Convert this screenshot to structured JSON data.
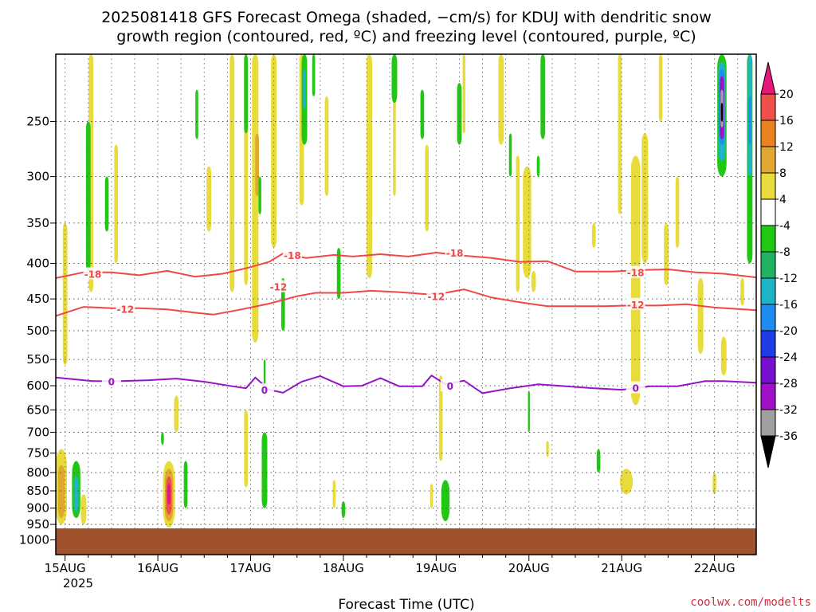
{
  "chart_data": {
    "type": "heatmap",
    "title_line1": "2025081418 GFS Forecast Omega (shaded, −cm/s) for KDUJ with dendritic snow",
    "title_line2": "growth region (contoured, red, ºC) and freezing level (contoured, purple, ºC)",
    "xlabel": "Forecast Time (UTC)",
    "x_year_label": "2025",
    "x_ticks": [
      {
        "t": 0.0,
        "label": "15AUG"
      },
      {
        "t": 1.0,
        "label": "16AUG"
      },
      {
        "t": 2.0,
        "label": "17AUG"
      },
      {
        "t": 3.0,
        "label": "18AUG"
      },
      {
        "t": 4.0,
        "label": "19AUG"
      },
      {
        "t": 5.0,
        "label": "20AUG"
      },
      {
        "t": 6.0,
        "label": "21AUG"
      },
      {
        "t": 7.0,
        "label": "22AUG"
      }
    ],
    "x_range": [
      -0.1,
      7.45
    ],
    "y_axis": "pressure (hPa), log scale, inverted",
    "y_range": [
      200,
      1050
    ],
    "y_ticks": [
      "250",
      "300",
      "350",
      "400",
      "450",
      "500",
      "550",
      "600",
      "650",
      "700",
      "750",
      "800",
      "850",
      "900",
      "950",
      "1000"
    ],
    "grid": true,
    "ground_level_hpa": 955,
    "colorbar": {
      "labels": [
        "20",
        "16",
        "12",
        "8",
        "4",
        "-4",
        "-8",
        "-12",
        "-16",
        "-20",
        "-24",
        "-28",
        "-32",
        "-36"
      ],
      "bands": [
        {
          "from": 20,
          "to": 24,
          "color": "#e8187a"
        },
        {
          "from": 16,
          "to": 20,
          "color": "#f0504a"
        },
        {
          "from": 12,
          "to": 16,
          "color": "#e8821e"
        },
        {
          "from": 8,
          "to": 12,
          "color": "#e0a830"
        },
        {
          "from": 4,
          "to": 8,
          "color": "#e8dc3c"
        },
        {
          "from": -4,
          "to": 4,
          "color": "#ffffff"
        },
        {
          "from": -8,
          "to": -4,
          "color": "#20c814"
        },
        {
          "from": -12,
          "to": -8,
          "color": "#1eb464"
        },
        {
          "from": -16,
          "to": -12,
          "color": "#1eb4c8"
        },
        {
          "from": -20,
          "to": -16,
          "color": "#1e8cf0"
        },
        {
          "from": -24,
          "to": -20,
          "color": "#1e3ce6"
        },
        {
          "from": -28,
          "to": -24,
          "color": "#7810d2"
        },
        {
          "from": -32,
          "to": -28,
          "color": "#a010c8"
        },
        {
          "from": -36,
          "to": -32,
          "color": "#a0a0a0"
        },
        {
          "from": -40,
          "to": -36,
          "color": "#000000"
        }
      ]
    },
    "contours": [
      {
        "name": "-18",
        "color": "#f04646",
        "points": [
          [
            -0.1,
            420
          ],
          [
            0.2,
            412
          ],
          [
            0.5,
            412
          ],
          [
            0.8,
            416
          ],
          [
            1.1,
            410
          ],
          [
            1.4,
            418
          ],
          [
            1.7,
            414
          ],
          [
            2.0,
            405
          ],
          [
            2.2,
            398
          ],
          [
            2.35,
            387
          ],
          [
            2.6,
            393
          ],
          [
            2.9,
            389
          ],
          [
            3.1,
            391
          ],
          [
            3.4,
            388
          ],
          [
            3.7,
            391
          ],
          [
            4.0,
            386
          ],
          [
            4.3,
            390
          ],
          [
            4.6,
            393
          ],
          [
            4.9,
            398
          ],
          [
            5.2,
            397
          ],
          [
            5.5,
            411
          ],
          [
            5.9,
            411
          ],
          [
            6.2,
            409
          ],
          [
            6.5,
            408
          ],
          [
            6.8,
            412
          ],
          [
            7.1,
            414
          ],
          [
            7.45,
            419
          ]
        ],
        "labels": [
          [
            0.3,
            414
          ],
          [
            2.45,
            389
          ],
          [
            4.2,
            386
          ],
          [
            6.15,
            412
          ]
        ]
      },
      {
        "name": "-12",
        "color": "#f04646",
        "points": [
          [
            -0.1,
            476
          ],
          [
            0.2,
            462
          ],
          [
            0.5,
            464
          ],
          [
            0.8,
            464
          ],
          [
            1.1,
            466
          ],
          [
            1.4,
            471
          ],
          [
            1.6,
            474
          ],
          [
            1.9,
            466
          ],
          [
            2.2,
            457
          ],
          [
            2.5,
            446
          ],
          [
            2.7,
            441
          ],
          [
            3.0,
            441
          ],
          [
            3.3,
            438
          ],
          [
            3.6,
            440
          ],
          [
            3.9,
            443
          ],
          [
            4.1,
            441
          ],
          [
            4.3,
            436
          ],
          [
            4.6,
            448
          ],
          [
            4.9,
            455
          ],
          [
            5.2,
            461
          ],
          [
            5.5,
            461
          ],
          [
            5.8,
            461
          ],
          [
            6.1,
            460
          ],
          [
            6.4,
            460
          ],
          [
            6.7,
            458
          ],
          [
            7.0,
            463
          ],
          [
            7.45,
            467
          ]
        ],
        "labels": [
          [
            0.65,
            465
          ],
          [
            2.3,
            432
          ],
          [
            4.0,
            446
          ],
          [
            6.15,
            458
          ]
        ]
      },
      {
        "name": "0",
        "color": "#9614c8",
        "points": [
          [
            -0.1,
            584
          ],
          [
            0.3,
            591
          ],
          [
            0.6,
            591
          ],
          [
            0.9,
            589
          ],
          [
            1.2,
            586
          ],
          [
            1.5,
            592
          ],
          [
            1.8,
            601
          ],
          [
            1.95,
            605
          ],
          [
            2.05,
            584
          ],
          [
            2.2,
            608
          ],
          [
            2.35,
            614
          ],
          [
            2.55,
            592
          ],
          [
            2.75,
            581
          ],
          [
            3.0,
            601
          ],
          [
            3.2,
            600
          ],
          [
            3.4,
            585
          ],
          [
            3.6,
            601
          ],
          [
            3.85,
            601
          ],
          [
            3.95,
            580
          ],
          [
            4.1,
            597
          ],
          [
            4.3,
            590
          ],
          [
            4.5,
            615
          ],
          [
            4.8,
            605
          ],
          [
            5.1,
            597
          ],
          [
            5.4,
            601
          ],
          [
            5.7,
            605
          ],
          [
            6.0,
            608
          ],
          [
            6.3,
            601
          ],
          [
            6.6,
            601
          ],
          [
            6.9,
            591
          ],
          [
            7.1,
            591
          ],
          [
            7.45,
            594
          ]
        ],
        "labels": [
          [
            0.5,
            591
          ],
          [
            2.15,
            608
          ],
          [
            4.15,
            600
          ],
          [
            6.15,
            604
          ]
        ]
      }
    ],
    "shaded_regions": [
      {
        "class": "yellow",
        "x": 0.0,
        "p_top": 350,
        "p_bot": 560,
        "w": 0.05
      },
      {
        "class": "yellow",
        "x": 0.28,
        "p_top": 200,
        "p_bot": 440,
        "w": 0.05
      },
      {
        "class": "yellow",
        "x": 0.55,
        "p_top": 270,
        "p_bot": 400,
        "w": 0.04
      },
      {
        "class": "yellow",
        "x": 1.55,
        "p_top": 290,
        "p_bot": 360,
        "w": 0.05
      },
      {
        "class": "yellow",
        "x": 1.8,
        "p_top": 200,
        "p_bot": 440,
        "w": 0.05
      },
      {
        "class": "yellow",
        "x": 1.95,
        "p_top": 200,
        "p_bot": 430,
        "w": 0.04
      },
      {
        "class": "yellow",
        "x": 2.05,
        "p_top": 200,
        "p_bot": 520,
        "w": 0.07
      },
      {
        "class": "orange",
        "x": 2.07,
        "p_top": 260,
        "p_bot": 320,
        "w": 0.04
      },
      {
        "class": "yellow",
        "x": 2.25,
        "p_top": 200,
        "p_bot": 380,
        "w": 0.06
      },
      {
        "class": "yellow",
        "x": 2.55,
        "p_top": 200,
        "p_bot": 330,
        "w": 0.05
      },
      {
        "class": "yellow",
        "x": 2.82,
        "p_top": 230,
        "p_bot": 320,
        "w": 0.04
      },
      {
        "class": "yellow",
        "x": 3.28,
        "p_top": 200,
        "p_bot": 420,
        "w": 0.06
      },
      {
        "class": "yellow",
        "x": 3.55,
        "p_top": 200,
        "p_bot": 320,
        "w": 0.03
      },
      {
        "class": "yellow",
        "x": 3.9,
        "p_top": 270,
        "p_bot": 360,
        "w": 0.04
      },
      {
        "class": "yellow",
        "x": 4.3,
        "p_top": 200,
        "p_bot": 260,
        "w": 0.03
      },
      {
        "class": "yellow",
        "x": 4.7,
        "p_top": 200,
        "p_bot": 270,
        "w": 0.06
      },
      {
        "class": "yellow",
        "x": 4.88,
        "p_top": 280,
        "p_bot": 440,
        "w": 0.04
      },
      {
        "class": "orange",
        "x": 4.97,
        "p_top": 300,
        "p_bot": 390,
        "w": 0.05
      },
      {
        "class": "yellow",
        "x": 4.98,
        "p_top": 290,
        "p_bot": 420,
        "w": 0.09
      },
      {
        "class": "yellow",
        "x": 5.05,
        "p_top": 410,
        "p_bot": 440,
        "w": 0.05
      },
      {
        "class": "yellow",
        "x": 5.7,
        "p_top": 350,
        "p_bot": 380,
        "w": 0.04
      },
      {
        "class": "yellow",
        "x": 5.98,
        "p_top": 200,
        "p_bot": 340,
        "w": 0.04
      },
      {
        "class": "yellow",
        "x": 6.15,
        "p_top": 280,
        "p_bot": 640,
        "w": 0.1
      },
      {
        "class": "yellow",
        "x": 6.25,
        "p_top": 260,
        "p_bot": 400,
        "w": 0.07
      },
      {
        "class": "yellow",
        "x": 6.42,
        "p_top": 200,
        "p_bot": 250,
        "w": 0.04
      },
      {
        "class": "yellow",
        "x": 6.48,
        "p_top": 350,
        "p_bot": 430,
        "w": 0.05
      },
      {
        "class": "yellow",
        "x": 6.6,
        "p_top": 300,
        "p_bot": 380,
        "w": 0.04
      },
      {
        "class": "yellow",
        "x": 6.85,
        "p_top": 420,
        "p_bot": 540,
        "w": 0.06
      },
      {
        "class": "yellow",
        "x": 7.1,
        "p_top": 510,
        "p_bot": 580,
        "w": 0.06
      },
      {
        "class": "yellow",
        "x": 7.3,
        "p_top": 420,
        "p_bot": 460,
        "w": 0.04
      },
      {
        "class": "yellow",
        "x": 7.38,
        "p_top": 200,
        "p_bot": 290,
        "w": 0.03
      },
      {
        "class": "yellow",
        "x": 1.2,
        "p_top": 620,
        "p_bot": 700,
        "w": 0.05
      },
      {
        "class": "yellow",
        "x": 1.95,
        "p_top": 650,
        "p_bot": 840,
        "w": 0.04
      },
      {
        "class": "yellow",
        "x": 6.05,
        "p_top": 790,
        "p_bot": 860,
        "w": 0.14
      },
      {
        "class": "yellow",
        "x": 7.0,
        "p_top": 800,
        "p_bot": 860,
        "w": 0.04
      },
      {
        "class": "yellow",
        "x": 4.05,
        "p_top": 580,
        "p_bot": 770,
        "w": 0.04
      },
      {
        "class": "yellow",
        "x": 5.2,
        "p_top": 720,
        "p_bot": 760,
        "w": 0.03
      },
      {
        "class": "yellow",
        "x": -0.04,
        "p_top": 740,
        "p_bot": 950,
        "w": 0.12
      },
      {
        "class": "orange",
        "x": -0.04,
        "p_top": 780,
        "p_bot": 930,
        "w": 0.07
      },
      {
        "class": "yellow",
        "x": 1.12,
        "p_top": 770,
        "p_bot": 960,
        "w": 0.13
      },
      {
        "class": "orange",
        "x": 1.12,
        "p_top": 790,
        "p_bot": 940,
        "w": 0.09
      },
      {
        "class": "red",
        "x": 1.12,
        "p_top": 810,
        "p_bot": 920,
        "w": 0.06
      },
      {
        "class": "magenta",
        "x": 1.12,
        "p_top": 830,
        "p_bot": 890,
        "w": 0.035
      },
      {
        "class": "yellow",
        "x": 0.2,
        "p_top": 860,
        "p_bot": 950,
        "w": 0.06
      },
      {
        "class": "yellow",
        "x": 2.9,
        "p_top": 820,
        "p_bot": 900,
        "w": 0.03
      },
      {
        "class": "yellow",
        "x": 3.95,
        "p_top": 830,
        "p_bot": 900,
        "w": 0.03
      },
      {
        "class": "green",
        "x": 0.25,
        "p_top": 250,
        "p_bot": 410,
        "w": 0.05
      },
      {
        "class": "green",
        "x": 0.45,
        "p_top": 300,
        "p_bot": 360,
        "w": 0.04
      },
      {
        "class": "green",
        "x": 1.42,
        "p_top": 225,
        "p_bot": 265,
        "w": 0.03
      },
      {
        "class": "green",
        "x": 1.95,
        "p_top": 200,
        "p_bot": 260,
        "w": 0.04
      },
      {
        "class": "green",
        "x": 2.1,
        "p_top": 300,
        "p_bot": 340,
        "w": 0.03
      },
      {
        "class": "green",
        "x": 2.35,
        "p_top": 420,
        "p_bot": 500,
        "w": 0.04
      },
      {
        "class": "green",
        "x": 2.58,
        "p_top": 200,
        "p_bot": 270,
        "w": 0.06
      },
      {
        "class": "teal",
        "x": 2.58,
        "p_top": 210,
        "p_bot": 240,
        "w": 0.03
      },
      {
        "class": "green",
        "x": 2.68,
        "p_top": 200,
        "p_bot": 230,
        "w": 0.03
      },
      {
        "class": "green",
        "x": 2.95,
        "p_top": 380,
        "p_bot": 450,
        "w": 0.04
      },
      {
        "class": "green",
        "x": 3.55,
        "p_top": 200,
        "p_bot": 235,
        "w": 0.06
      },
      {
        "class": "green",
        "x": 3.85,
        "p_top": 225,
        "p_bot": 265,
        "w": 0.04
      },
      {
        "class": "green",
        "x": 4.25,
        "p_top": 220,
        "p_bot": 270,
        "w": 0.05
      },
      {
        "class": "green",
        "x": 5.15,
        "p_top": 200,
        "p_bot": 265,
        "w": 0.05
      },
      {
        "class": "green",
        "x": 4.8,
        "p_top": 260,
        "p_bot": 300,
        "w": 0.03
      },
      {
        "class": "green",
        "x": 5.1,
        "p_top": 280,
        "p_bot": 300,
        "w": 0.03
      },
      {
        "class": "green",
        "x": 7.38,
        "p_top": 200,
        "p_bot": 400,
        "w": 0.06
      },
      {
        "class": "teal",
        "x": 7.38,
        "p_top": 200,
        "p_bot": 300,
        "w": 0.04
      },
      {
        "class": "blue",
        "x": 7.38,
        "p_top": 230,
        "p_bot": 270,
        "w": 0.025
      },
      {
        "class": "green",
        "x": 7.08,
        "p_top": 200,
        "p_bot": 300,
        "w": 0.1
      },
      {
        "class": "teal",
        "x": 7.08,
        "p_top": 205,
        "p_bot": 285,
        "w": 0.075
      },
      {
        "class": "blue",
        "x": 7.08,
        "p_top": 210,
        "p_bot": 270,
        "w": 0.06
      },
      {
        "class": "purple",
        "x": 7.08,
        "p_top": 215,
        "p_bot": 265,
        "w": 0.045
      },
      {
        "class": "gray",
        "x": 7.08,
        "p_top": 225,
        "p_bot": 255,
        "w": 0.03
      },
      {
        "class": "black",
        "x": 7.08,
        "p_top": 235,
        "p_bot": 250,
        "w": 0.02
      },
      {
        "class": "green",
        "x": 0.12,
        "p_top": 770,
        "p_bot": 930,
        "w": 0.09
      },
      {
        "class": "teal",
        "x": 0.12,
        "p_top": 810,
        "p_bot": 910,
        "w": 0.05
      },
      {
        "class": "green",
        "x": 1.3,
        "p_top": 770,
        "p_bot": 900,
        "w": 0.04
      },
      {
        "class": "green",
        "x": 1.05,
        "p_top": 700,
        "p_bot": 730,
        "w": 0.03
      },
      {
        "class": "green",
        "x": 2.15,
        "p_top": 700,
        "p_bot": 900,
        "w": 0.06
      },
      {
        "class": "green",
        "x": 3.0,
        "p_top": 880,
        "p_bot": 930,
        "w": 0.04
      },
      {
        "class": "green",
        "x": 4.1,
        "p_top": 820,
        "p_bot": 940,
        "w": 0.09
      },
      {
        "class": "green",
        "x": 5.75,
        "p_top": 740,
        "p_bot": 800,
        "w": 0.04
      },
      {
        "class": "green",
        "x": 2.15,
        "p_top": 550,
        "p_bot": 620,
        "w": 0.02
      },
      {
        "class": "green",
        "x": 5.0,
        "p_top": 610,
        "p_bot": 700,
        "w": 0.02
      }
    ]
  },
  "credit": "coolwx.com/modelts"
}
